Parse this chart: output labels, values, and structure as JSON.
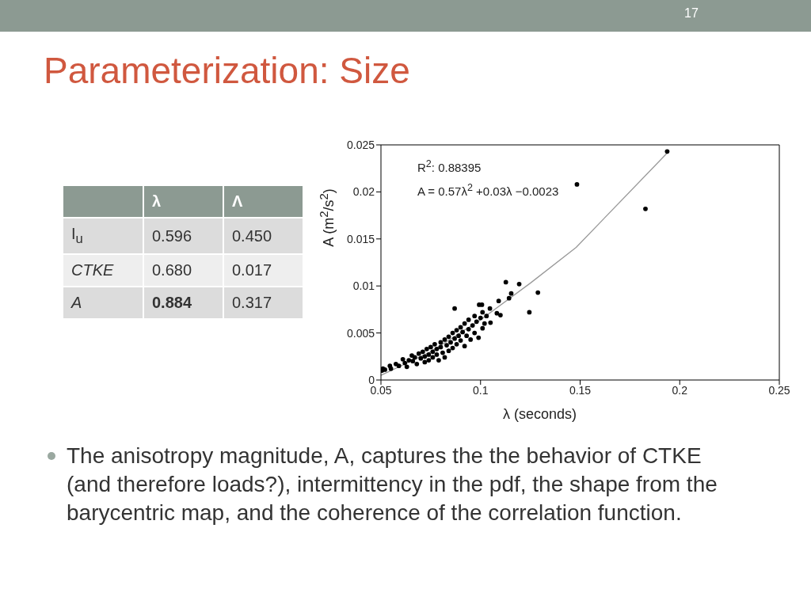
{
  "chart_data": [
    {
      "type": "scatter",
      "title": "Parameterization: Size",
      "xlabel": "λ (seconds)",
      "ylabel": "A (m$^{2}$/s$^{2}$)",
      "annotations": [
        "R$^{2}$: 0.88395",
        "A = 0.57λ$^{2}$ +0.03λ −0.0023",
        "17",
        "The anisotropy magnitude, A, captures the the behavior of CTKE (and therefore loads?), intermittency in the pdf, the shape from the barycentric map, and the coherence of the correlation function."
      ],
      "xlim": [
        0.05,
        0.25
      ],
      "xticks": [
        0.05,
        0.1,
        0.15,
        0.2,
        0.25
      ],
      "ylim": [
        0,
        0.025
      ],
      "yticks": [
        0,
        0.005,
        0.01,
        0.015,
        0.02,
        0.025
      ],
      "series": [
        {
          "type": "scatter",
          "color": "#000000",
          "marker": "circle",
          "x": [
            0.0505,
            0.051,
            0.052,
            0.0545,
            0.055,
            0.0575,
            0.059,
            0.061,
            0.062,
            0.063,
            0.064,
            0.0655,
            0.066,
            0.067,
            0.068,
            0.069,
            0.07,
            0.071,
            0.072,
            0.072,
            0.073,
            0.074,
            0.074,
            0.075,
            0.076,
            0.076,
            0.077,
            0.078,
            0.078,
            0.079,
            0.08,
            0.08,
            0.081,
            0.082,
            0.082,
            0.083,
            0.084,
            0.084,
            0.085,
            0.086,
            0.086,
            0.087,
            0.088,
            0.088,
            0.089,
            0.09,
            0.09,
            0.091,
            0.092,
            0.092,
            0.093,
            0.094,
            0.094,
            0.095,
            0.096,
            0.097,
            0.097,
            0.098,
            0.099,
            0.1,
            0.101,
            0.101,
            0.102,
            0.103,
            0.1937,
            0.1484,
            0.1828,
            0.1127,
            0.1194,
            0.1288,
            0.1154,
            0.1143,
            0.1091,
            0.1245,
            0.11,
            0.1082,
            0.1047,
            0.087,
            0.0993,
            0.1007,
            0.105
          ],
          "values": [
            0.001,
            0.0012,
            0.0011,
            0.0015,
            0.0012,
            0.0017,
            0.0015,
            0.0022,
            0.0018,
            0.0014,
            0.0021,
            0.0026,
            0.002,
            0.0024,
            0.0017,
            0.0028,
            0.0023,
            0.003,
            0.0025,
            0.0019,
            0.0033,
            0.0027,
            0.0021,
            0.0035,
            0.003,
            0.0024,
            0.0038,
            0.0033,
            0.0027,
            0.0021,
            0.004,
            0.0035,
            0.0029,
            0.0043,
            0.0024,
            0.0037,
            0.0046,
            0.0031,
            0.004,
            0.005,
            0.0034,
            0.0044,
            0.0053,
            0.0038,
            0.0047,
            0.0056,
            0.0042,
            0.0051,
            0.006,
            0.0036,
            0.0047,
            0.0064,
            0.0054,
            0.0043,
            0.0058,
            0.0068,
            0.005,
            0.0062,
            0.0045,
            0.0066,
            0.0072,
            0.0055,
            0.006,
            0.0068,
            0.0243,
            0.0208,
            0.0182,
            0.0104,
            0.0102,
            0.0093,
            0.0092,
            0.0087,
            0.0084,
            0.0072,
            0.0069,
            0.0071,
            0.0076,
            0.0076,
            0.008,
            0.008,
            0.0061
          ]
        },
        {
          "type": "line",
          "color": "#999999",
          "x": [
            0.05,
            0.075,
            0.1,
            0.125,
            0.148,
            0.194
          ],
          "values": [
            0.0005,
            0.003,
            0.0064,
            0.0103,
            0.0141,
            0.0242
          ]
        }
      ]
    },
    {
      "type": "other",
      "categories": [
        "λ",
        "Λ"
      ],
      "y_categories": [
        "I$_{u}$",
        "CTKE",
        "A"
      ],
      "cell_labels": [
        [
          "0.596",
          "0.450"
        ],
        [
          "0.680",
          "0.017"
        ],
        [
          "0.884",
          "0.317"
        ]
      ]
    }
  ]
}
